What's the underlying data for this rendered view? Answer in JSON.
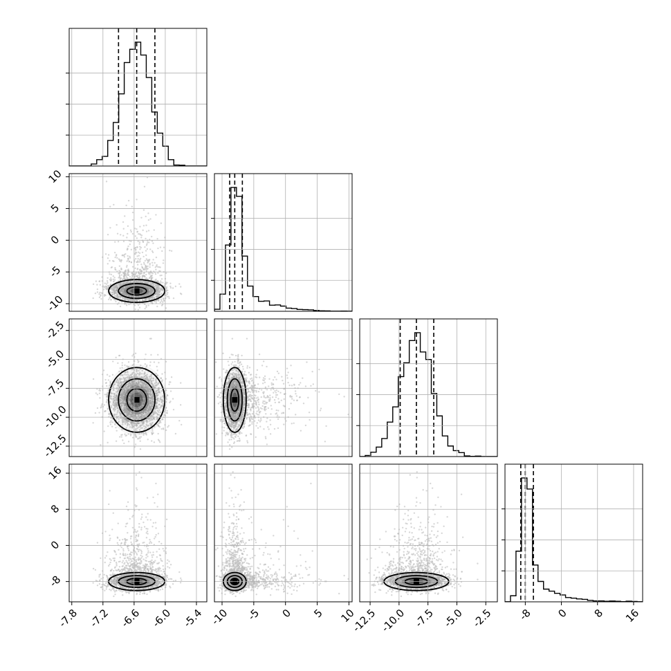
{
  "chart_data": {
    "type": "corner",
    "grid": true,
    "colors": {
      "line": "#000000",
      "grid": "#b0b0b0",
      "points": "#bdbdbd",
      "density": "#000000"
    },
    "parameters": [
      {
        "range": [
          -7.85,
          -5.2
        ],
        "ticks": [
          "-7.8",
          "-7.2",
          "-6.6",
          "-6.0",
          "-5.4"
        ],
        "tick_values": [
          -7.8,
          -7.2,
          -6.6,
          -6.0,
          -5.4
        ],
        "mean": -6.55,
        "sd": 0.27,
        "quantiles": [
          -6.9,
          -6.55,
          -6.2
        ]
      },
      {
        "range": [
          -11.2,
          10.5
        ],
        "ticks": [
          "-10",
          "-5",
          "0",
          "5",
          "10"
        ],
        "tick_values": [
          -10,
          -5,
          0,
          5,
          10
        ],
        "mean": -8.0,
        "sd": 0.9,
        "tail": 0.3,
        "quantiles": [
          -8.8,
          -8.0,
          -6.8
        ]
      },
      {
        "range": [
          -13.4,
          -1.5
        ],
        "ticks": [
          "-12.5",
          "-10.0",
          "-7.5",
          "-5.0",
          "-2.5"
        ],
        "tick_values": [
          -12.5,
          -10.0,
          -7.5,
          -5.0,
          -2.5
        ],
        "mean": -8.5,
        "sd": 1.4,
        "quantiles": [
          -9.9,
          -8.5,
          -7.0
        ]
      },
      {
        "range": [
          -12.5,
          18
        ],
        "ticks": [
          "-8",
          "0",
          "8",
          "16"
        ],
        "tick_values": [
          -8,
          0,
          8,
          16
        ],
        "mean": -8.0,
        "sd": 1.0,
        "tail": 0.3,
        "quantiles": [
          -9.0,
          -8.0,
          -6.2
        ]
      }
    ],
    "panels": [
      {
        "row": 0,
        "col": 0,
        "type": "histogram"
      },
      {
        "row": 1,
        "col": 0,
        "type": "scatter-contour"
      },
      {
        "row": 1,
        "col": 1,
        "type": "histogram"
      },
      {
        "row": 2,
        "col": 0,
        "type": "scatter-contour"
      },
      {
        "row": 2,
        "col": 1,
        "type": "scatter-contour"
      },
      {
        "row": 2,
        "col": 2,
        "type": "histogram"
      },
      {
        "row": 3,
        "col": 0,
        "type": "scatter-contour"
      },
      {
        "row": 3,
        "col": 1,
        "type": "scatter-contour"
      },
      {
        "row": 3,
        "col": 2,
        "type": "scatter-contour"
      },
      {
        "row": 3,
        "col": 3,
        "type": "histogram"
      }
    ]
  }
}
